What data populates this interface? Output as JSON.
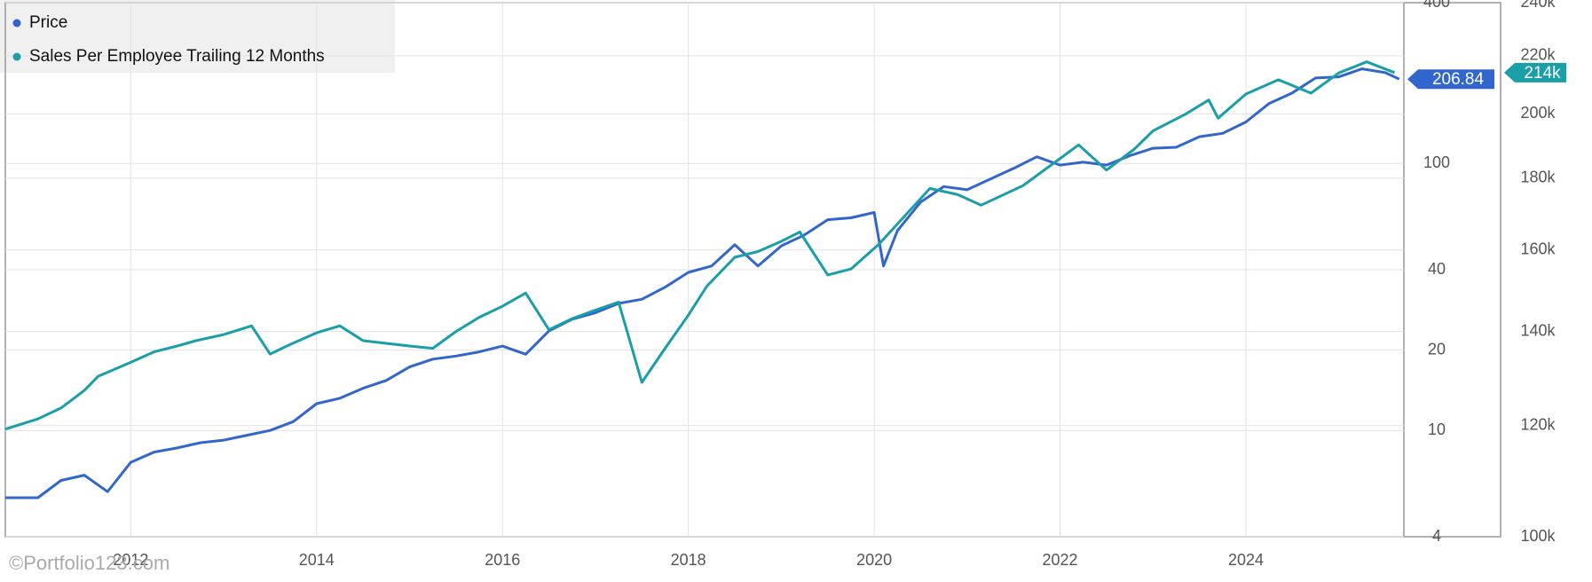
{
  "chart_data": {
    "type": "line",
    "log_scale": true,
    "grid": true,
    "legend": "top-left",
    "watermark": "©Portfolio123.com",
    "xlim": [
      2010.65,
      2025.7
    ],
    "xticks": [
      2012,
      2014,
      2016,
      2018,
      2020,
      2022,
      2024
    ],
    "ylim": [
      4,
      400
    ],
    "yticks": [
      4,
      10,
      20,
      40,
      100,
      400
    ],
    "y2lim": [
      100000,
      240000
    ],
    "y2ticks": [
      {
        "value": 100000,
        "label": "100k"
      },
      {
        "value": 120000,
        "label": "120k"
      },
      {
        "value": 140000,
        "label": "140k"
      },
      {
        "value": 160000,
        "label": "160k"
      },
      {
        "value": 180000,
        "label": "180k"
      },
      {
        "value": 200000,
        "label": "200k"
      },
      {
        "value": 220000,
        "label": "220k"
      },
      {
        "value": 240000,
        "label": "240k"
      }
    ],
    "series": [
      {
        "name": "Price",
        "color": "#3366cc",
        "x": [
          2010.65,
          2011.0,
          2011.25,
          2011.5,
          2011.75,
          2012.0,
          2012.25,
          2012.5,
          2012.75,
          2013.0,
          2013.25,
          2013.5,
          2013.75,
          2014.0,
          2014.25,
          2014.5,
          2014.75,
          2015.0,
          2015.25,
          2015.5,
          2015.75,
          2016.0,
          2016.25,
          2016.5,
          2016.75,
          2017.0,
          2017.25,
          2017.5,
          2017.75,
          2018.0,
          2018.25,
          2018.5,
          2018.75,
          2019.0,
          2019.25,
          2019.5,
          2019.75,
          2020.0,
          2020.1,
          2020.25,
          2020.5,
          2020.75,
          2021.0,
          2021.25,
          2021.5,
          2021.75,
          2022.0,
          2022.25,
          2022.5,
          2022.75,
          2023.0,
          2023.25,
          2023.5,
          2023.75,
          2024.0,
          2024.25,
          2024.5,
          2024.75,
          2025.0,
          2025.25,
          2025.5,
          2025.65
        ],
        "values": [
          5.6,
          5.6,
          6.5,
          6.8,
          5.9,
          7.6,
          8.3,
          8.6,
          9.0,
          9.2,
          9.6,
          10,
          10.8,
          12.6,
          13.2,
          14.4,
          15.4,
          17.3,
          18.5,
          19.0,
          19.7,
          20.7,
          19.3,
          23.6,
          26.1,
          27.6,
          29.9,
          31.0,
          34.4,
          39.1,
          41.3,
          49.6,
          41.3,
          49.1,
          54,
          61.6,
          62.6,
          65.5,
          41.3,
          56,
          71.7,
          81.9,
          79.7,
          87.4,
          95.8,
          105.9,
          98.6,
          101.2,
          98.6,
          106.9,
          114,
          115,
          125.9,
          129.6,
          143,
          167.7,
          183.8,
          209,
          211,
          226,
          218.8,
          206.84
        ],
        "value_labels": [
          null,
          null,
          null,
          null,
          null,
          null,
          null,
          null,
          null,
          null,
          null,
          null,
          null,
          null,
          null,
          null,
          null,
          null,
          null,
          null,
          null,
          null,
          null,
          null,
          null,
          null,
          null,
          null,
          null,
          null,
          null,
          null,
          null,
          null,
          null,
          null,
          null,
          null,
          null,
          null,
          null,
          null,
          null,
          null,
          null,
          null,
          null,
          null,
          null,
          null,
          null,
          null,
          null,
          null,
          null,
          null,
          null,
          null,
          null,
          null,
          null,
          "206.84"
        ]
      },
      {
        "name": "Sales Per Employee Trailing 12 Months",
        "color": "#1a9ea8",
        "axis": "y2",
        "x": [
          2010.65,
          2011.0,
          2011.25,
          2011.5,
          2011.65,
          2012.0,
          2012.25,
          2012.5,
          2012.7,
          2013.0,
          2013.3,
          2013.5,
          2013.7,
          2014.0,
          2014.25,
          2014.5,
          2015.0,
          2015.25,
          2015.5,
          2015.75,
          2016.0,
          2016.25,
          2016.5,
          2016.75,
          2017.0,
          2017.25,
          2017.5,
          2017.75,
          2018.0,
          2018.2,
          2018.5,
          2018.75,
          2019.0,
          2019.2,
          2019.5,
          2019.75,
          2020.05,
          2020.6,
          2020.9,
          2021.15,
          2021.6,
          2021.8,
          2022.2,
          2022.5,
          2022.8,
          2023.0,
          2023.35,
          2023.6,
          2023.7,
          2024.0,
          2024.35,
          2024.7,
          2025.0,
          2025.3,
          2025.6
        ],
        "values": [
          119300,
          121300,
          123500,
          127100,
          130100,
          133100,
          135400,
          136700,
          137900,
          139300,
          141300,
          134900,
          136900,
          139700,
          141300,
          137900,
          136700,
          136200,
          140000,
          143300,
          145900,
          149100,
          140400,
          143000,
          145000,
          146900,
          128800,
          136200,
          143800,
          150800,
          158100,
          159600,
          162300,
          164800,
          153600,
          155100,
          161500,
          177000,
          175200,
          172200,
          177800,
          181800,
          190100,
          182400,
          188800,
          194500,
          199900,
          204600,
          198600,
          206600,
          211500,
          206900,
          213900,
          217800,
          214000
        ],
        "value_labels": [
          null,
          null,
          null,
          null,
          null,
          null,
          null,
          null,
          null,
          null,
          null,
          null,
          null,
          null,
          null,
          null,
          null,
          null,
          null,
          null,
          null,
          null,
          null,
          null,
          null,
          null,
          null,
          null,
          null,
          null,
          null,
          null,
          null,
          null,
          null,
          null,
          null,
          null,
          null,
          null,
          null,
          null,
          null,
          null,
          null,
          null,
          null,
          null,
          null,
          null,
          null,
          null,
          null,
          null,
          "214k"
        ]
      }
    ]
  }
}
